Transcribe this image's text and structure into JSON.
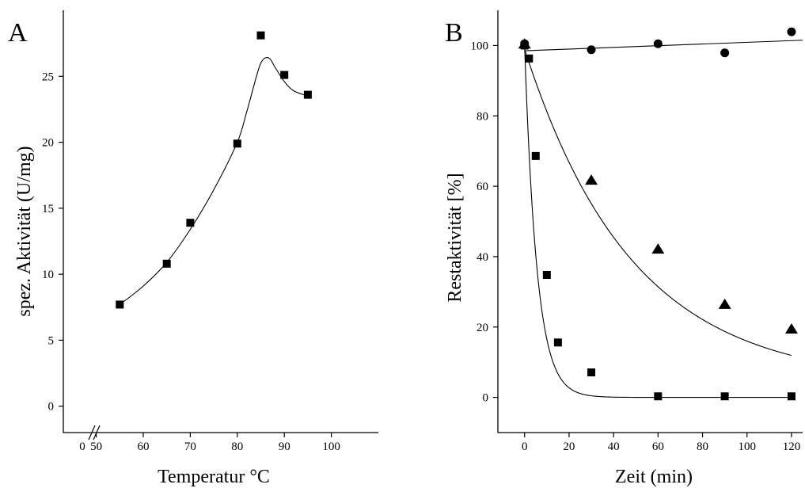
{
  "chart_data": [
    {
      "panel": "A",
      "type": "scatter",
      "xlabel": "Temperatur °C",
      "ylabel": "spez. Aktivität (U/mg)",
      "xlim": [
        43,
        110
      ],
      "ylim": [
        -2,
        30
      ],
      "axis_break": {
        "between": [
          0,
          50
        ],
        "label_before": "0"
      },
      "xticks": [
        50,
        60,
        70,
        80,
        90,
        100
      ],
      "yticks": [
        0,
        5,
        10,
        15,
        20,
        25
      ],
      "series": [
        {
          "marker": "square",
          "x": [
            55,
            65,
            70,
            80,
            85,
            90,
            95
          ],
          "y": [
            7.7,
            10.8,
            13.9,
            19.9,
            28.1,
            25.1,
            23.6
          ]
        }
      ],
      "fit": {
        "x": [
          55,
          60,
          65,
          70,
          75,
          80,
          82,
          84,
          85,
          86,
          87,
          88,
          90,
          92,
          95
        ],
        "y": [
          7.7,
          9.1,
          10.9,
          13.4,
          16.4,
          20.0,
          22.3,
          24.9,
          26.0,
          26.4,
          26.3,
          25.7,
          24.6,
          23.9,
          23.5
        ]
      }
    },
    {
      "panel": "B",
      "type": "scatter",
      "xlabel": "Zeit (min)",
      "ylabel": "Restaktivität [%]",
      "xlim": [
        -12,
        125
      ],
      "ylim": [
        -10,
        110
      ],
      "xticks": [
        0,
        20,
        40,
        60,
        80,
        100,
        120
      ],
      "yticks": [
        0,
        20,
        40,
        60,
        80,
        100
      ],
      "series": [
        {
          "marker": "circle",
          "x": [
            0,
            30,
            60,
            90,
            120
          ],
          "y": [
            100.5,
            98.8,
            100.5,
            97.9,
            103.9
          ],
          "fit": {
            "x": [
              0,
              125
            ],
            "y": [
              98.5,
              101.5
            ]
          }
        },
        {
          "marker": "triangle",
          "x": [
            0,
            30,
            60,
            90,
            120
          ],
          "y": [
            100.5,
            61.8,
            42.2,
            26.5,
            19.5
          ],
          "fit_decay": {
            "a": 95,
            "k": 0.0207,
            "c": 4,
            "x_from": 0,
            "x_to": 120
          }
        },
        {
          "marker": "square",
          "x": [
            0,
            2,
            5,
            10,
            15,
            30,
            60,
            90,
            120
          ],
          "y": [
            100,
            96.3,
            68.6,
            34.8,
            15.6,
            7.1,
            0.3,
            0.3,
            0.3
          ],
          "fit_decay": {
            "a": 100,
            "k": 0.18,
            "c": 0,
            "x_from": 0,
            "x_to": 120
          }
        }
      ]
    }
  ]
}
